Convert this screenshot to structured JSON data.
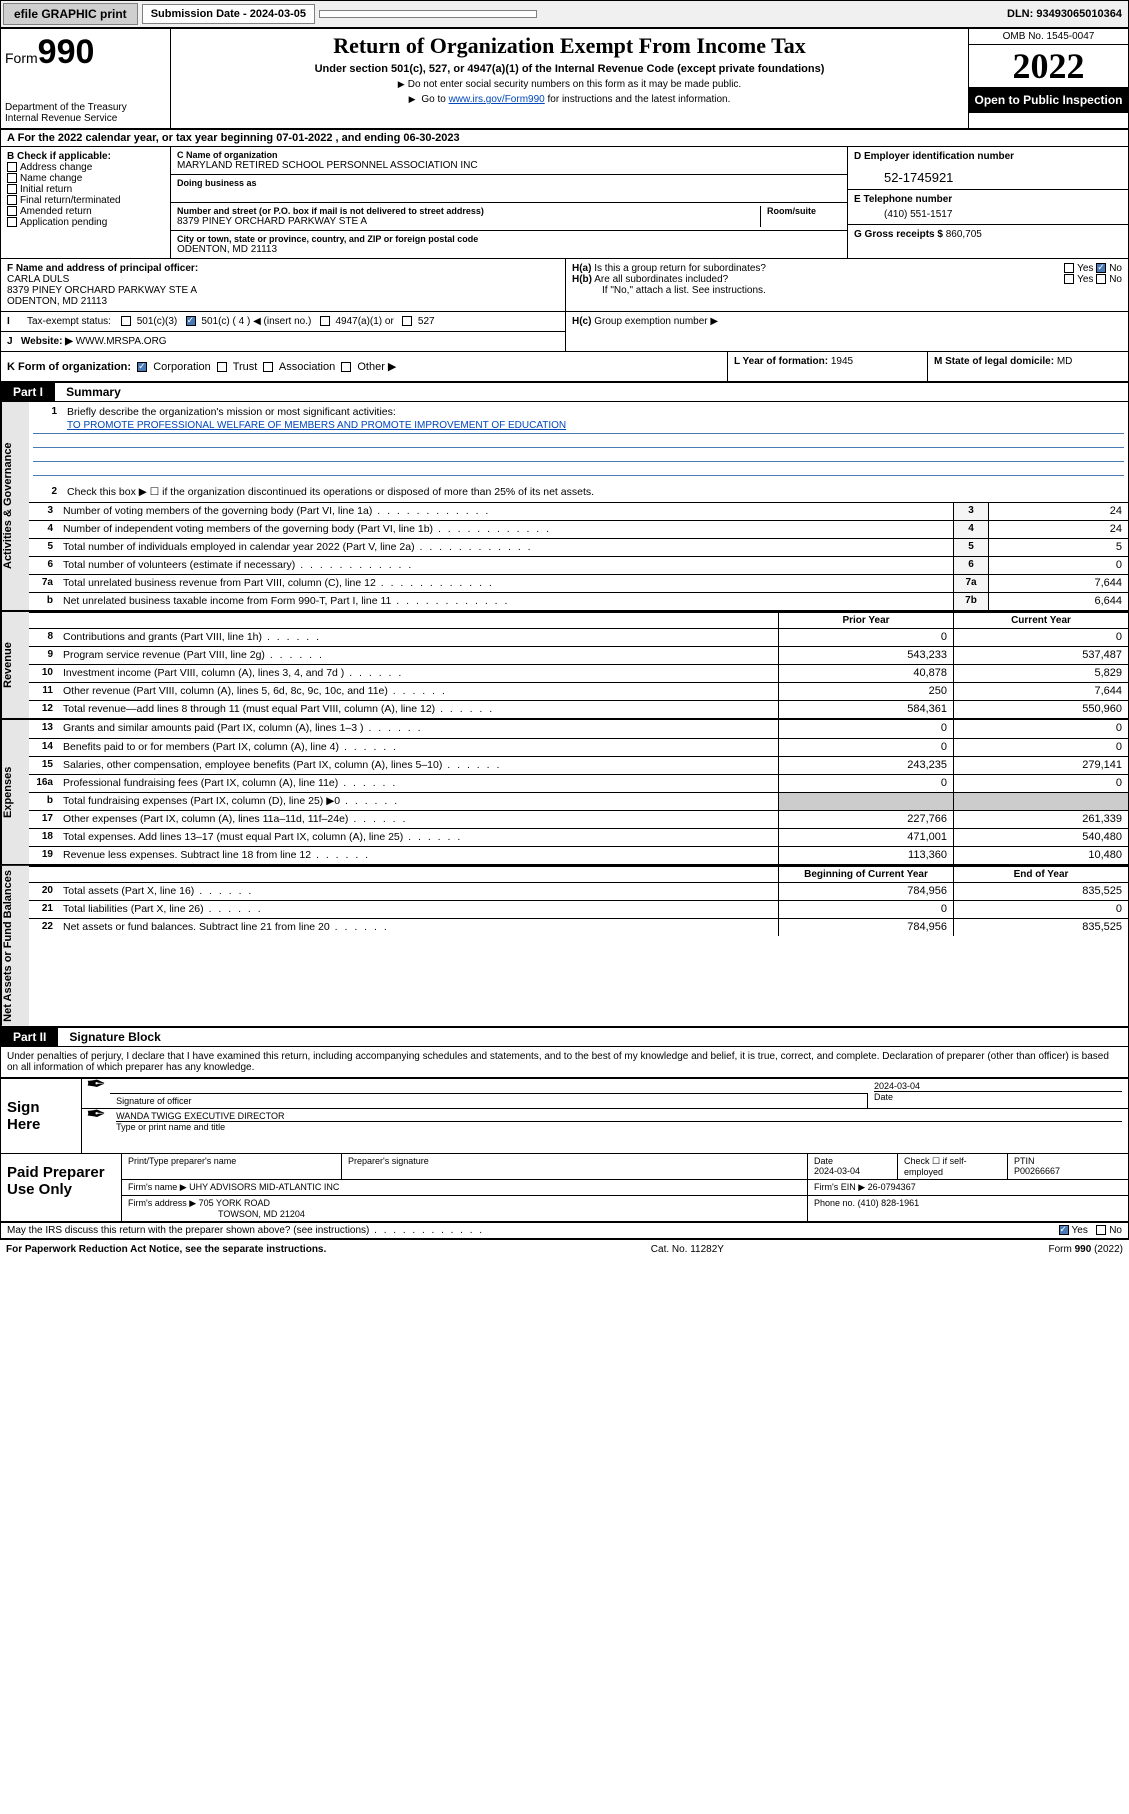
{
  "topbar": {
    "efile": "efile GRAPHIC print",
    "submission_label": "Submission Date - 2024-03-05",
    "dln": "DLN: 93493065010364"
  },
  "header": {
    "form_prefix": "Form",
    "form_num": "990",
    "dept": "Department of the Treasury\nInternal Revenue Service",
    "title": "Return of Organization Exempt From Income Tax",
    "subtitle": "Under section 501(c), 527, or 4947(a)(1) of the Internal Revenue Code (except private foundations)",
    "note1": "Do not enter social security numbers on this form as it may be made public.",
    "note2_pre": "Go to ",
    "note2_link": "www.irs.gov/Form990",
    "note2_post": " for instructions and the latest information.",
    "omb": "OMB No. 1545-0047",
    "year": "2022",
    "inspection": "Open to Public Inspection"
  },
  "rowA": "For the 2022 calendar year, or tax year beginning 07-01-2022   , and ending 06-30-2023",
  "boxB": {
    "hdr": "B Check if applicable:",
    "opts": [
      "Address change",
      "Name change",
      "Initial return",
      "Final return/terminated",
      "Amended return",
      "Application pending"
    ]
  },
  "boxC": {
    "name_lbl": "C Name of organization",
    "name": "MARYLAND RETIRED SCHOOL PERSONNEL ASSOCIATION INC",
    "dba_lbl": "Doing business as",
    "addr_lbl": "Number and street (or P.O. box if mail is not delivered to street address)",
    "room_lbl": "Room/suite",
    "addr": "8379 PINEY ORCHARD PARKWAY STE A",
    "city_lbl": "City or town, state or province, country, and ZIP or foreign postal code",
    "city": "ODENTON, MD  21113"
  },
  "boxD": {
    "hdr": "D Employer identification number",
    "ein": "52-1745921"
  },
  "boxE": {
    "hdr": "E Telephone number",
    "phone": "(410) 551-1517"
  },
  "boxG": {
    "hdr": "G Gross receipts $",
    "val": "860,705"
  },
  "boxF": {
    "hdr": "F Name and address of principal officer:",
    "name": "CARLA DULS",
    "addr1": "8379 PINEY ORCHARD PARKWAY STE A",
    "addr2": "ODENTON, MD  21113"
  },
  "boxH": {
    "ha": "Is this a group return for subordinates?",
    "hb": "Are all subordinates included?",
    "hnote": "If \"No,\" attach a list. See instructions.",
    "hc": "Group exemption number ▶"
  },
  "boxI": {
    "lbl": "Tax-exempt status:",
    "opts": [
      "501(c)(3)",
      "501(c) ( 4 ) ◀ (insert no.)",
      "4947(a)(1) or",
      "527"
    ]
  },
  "boxJ": {
    "lbl": "Website: ▶",
    "val": "WWW.MRSPA.ORG"
  },
  "boxK": {
    "lbl": "K Form of organization:",
    "opts": [
      "Corporation",
      "Trust",
      "Association",
      "Other ▶"
    ]
  },
  "boxL": {
    "lbl": "L Year of formation:",
    "val": "1945"
  },
  "boxM": {
    "lbl": "M State of legal domicile:",
    "val": "MD"
  },
  "part1": {
    "hdr": "Part I",
    "title": "Summary"
  },
  "summary": {
    "l1_lbl": "Briefly describe the organization's mission or most significant activities:",
    "l1_val": "TO PROMOTE PROFESSIONAL WELFARE OF MEMBERS AND PROMOTE IMPROVEMENT OF EDUCATION",
    "l2": "Check this box ▶ ☐  if the organization discontinued its operations or disposed of more than 25% of its net assets.",
    "sections": [
      {
        "label": "Activities & Governance",
        "lines": [
          {
            "n": "3",
            "t": "Number of voting members of the governing body (Part VI, line 1a)",
            "box": "3",
            "v": "24"
          },
          {
            "n": "4",
            "t": "Number of independent voting members of the governing body (Part VI, line 1b)",
            "box": "4",
            "v": "24"
          },
          {
            "n": "5",
            "t": "Total number of individuals employed in calendar year 2022 (Part V, line 2a)",
            "box": "5",
            "v": "5"
          },
          {
            "n": "6",
            "t": "Total number of volunteers (estimate if necessary)",
            "box": "6",
            "v": "0"
          },
          {
            "n": "7a",
            "t": "Total unrelated business revenue from Part VIII, column (C), line 12",
            "box": "7a",
            "v": "7,644"
          },
          {
            "n": "b",
            "t": "Net unrelated business taxable income from Form 990-T, Part I, line 11",
            "box": "7b",
            "v": "6,644"
          }
        ]
      },
      {
        "label": "Revenue",
        "col_headers": [
          "Prior Year",
          "Current Year"
        ],
        "lines": [
          {
            "n": "8",
            "t": "Contributions and grants (Part VIII, line 1h)",
            "py": "0",
            "cy": "0"
          },
          {
            "n": "9",
            "t": "Program service revenue (Part VIII, line 2g)",
            "py": "543,233",
            "cy": "537,487"
          },
          {
            "n": "10",
            "t": "Investment income (Part VIII, column (A), lines 3, 4, and 7d )",
            "py": "40,878",
            "cy": "5,829"
          },
          {
            "n": "11",
            "t": "Other revenue (Part VIII, column (A), lines 5, 6d, 8c, 9c, 10c, and 11e)",
            "py": "250",
            "cy": "7,644"
          },
          {
            "n": "12",
            "t": "Total revenue—add lines 8 through 11 (must equal Part VIII, column (A), line 12)",
            "py": "584,361",
            "cy": "550,960"
          }
        ]
      },
      {
        "label": "Expenses",
        "lines": [
          {
            "n": "13",
            "t": "Grants and similar amounts paid (Part IX, column (A), lines 1–3 )",
            "py": "0",
            "cy": "0"
          },
          {
            "n": "14",
            "t": "Benefits paid to or for members (Part IX, column (A), line 4)",
            "py": "0",
            "cy": "0"
          },
          {
            "n": "15",
            "t": "Salaries, other compensation, employee benefits (Part IX, column (A), lines 5–10)",
            "py": "243,235",
            "cy": "279,141"
          },
          {
            "n": "16a",
            "t": "Professional fundraising fees (Part IX, column (A), line 11e)",
            "py": "0",
            "cy": "0"
          },
          {
            "n": "b",
            "t": "Total fundraising expenses (Part IX, column (D), line 25) ▶0",
            "py": "",
            "cy": "",
            "shaded": true
          },
          {
            "n": "17",
            "t": "Other expenses (Part IX, column (A), lines 11a–11d, 11f–24e)",
            "py": "227,766",
            "cy": "261,339"
          },
          {
            "n": "18",
            "t": "Total expenses. Add lines 13–17 (must equal Part IX, column (A), line 25)",
            "py": "471,001",
            "cy": "540,480"
          },
          {
            "n": "19",
            "t": "Revenue less expenses. Subtract line 18 from line 12",
            "py": "113,360",
            "cy": "10,480"
          }
        ]
      },
      {
        "label": "Net Assets or Fund Balances",
        "col_headers": [
          "Beginning of Current Year",
          "End of Year"
        ],
        "lines": [
          {
            "n": "20",
            "t": "Total assets (Part X, line 16)",
            "py": "784,956",
            "cy": "835,525"
          },
          {
            "n": "21",
            "t": "Total liabilities (Part X, line 26)",
            "py": "0",
            "cy": "0"
          },
          {
            "n": "22",
            "t": "Net assets or fund balances. Subtract line 21 from line 20",
            "py": "784,956",
            "cy": "835,525"
          }
        ]
      }
    ]
  },
  "part2": {
    "hdr": "Part II",
    "title": "Signature Block"
  },
  "sig": {
    "declaration": "Under penalties of perjury, I declare that I have examined this return, including accompanying schedules and statements, and to the best of my knowledge and belief, it is true, correct, and complete. Declaration of preparer (other than officer) is based on all information of which preparer has any knowledge.",
    "sign_here": "Sign Here",
    "sig_officer": "Signature of officer",
    "date_lbl": "Date",
    "date": "2024-03-04",
    "name_title": "WANDA TWIGG  EXECUTIVE DIRECTOR",
    "type_lbl": "Type or print name and title",
    "paid_lbl": "Paid Preparer Use Only",
    "prep_name_lbl": "Print/Type preparer's name",
    "prep_sig_lbl": "Preparer's signature",
    "prep_date": "2024-03-04",
    "check_self": "Check ☐ if self-employed",
    "ptin_lbl": "PTIN",
    "ptin": "P00266667",
    "firm_name_lbl": "Firm's name    ▶",
    "firm_name": "UHY ADVISORS MID-ATLANTIC INC",
    "firm_ein_lbl": "Firm's EIN ▶",
    "firm_ein": "26-0794367",
    "firm_addr_lbl": "Firm's address ▶",
    "firm_addr1": "705 YORK ROAD",
    "firm_addr2": "TOWSON, MD  21204",
    "phone_lbl": "Phone no.",
    "phone": "(410) 828-1961",
    "discuss": "May the IRS discuss this return with the preparer shown above? (see instructions)"
  },
  "footer": {
    "paperwork": "For Paperwork Reduction Act Notice, see the separate instructions.",
    "cat": "Cat. No. 11282Y",
    "form": "Form 990 (2022)"
  },
  "colors": {
    "link": "#0047bb",
    "shade": "#e6e6e6"
  }
}
